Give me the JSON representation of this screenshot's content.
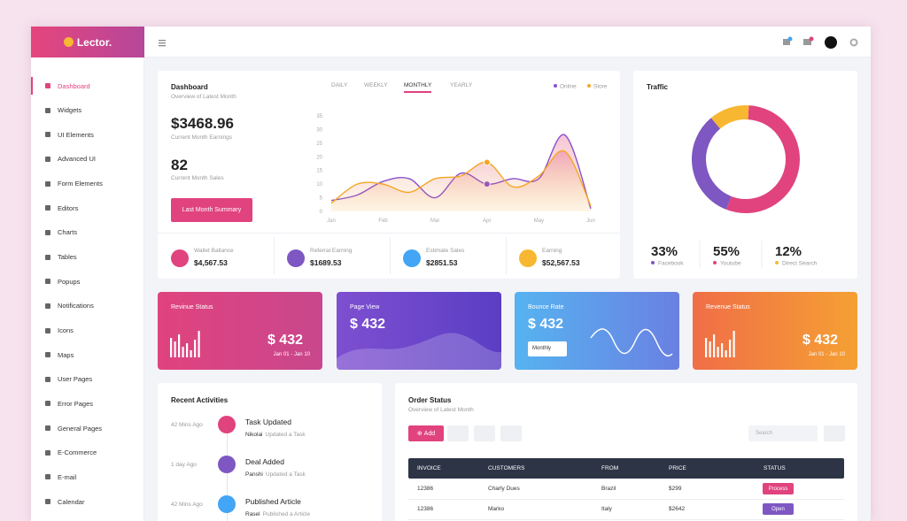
{
  "brand": "Lector.",
  "sidebar": [
    "Dashboard",
    "Widgets",
    "UI Elements",
    "Advanced UI",
    "Form Elements",
    "Editors",
    "Charts",
    "Tables",
    "Popups",
    "Notifications",
    "Icons",
    "Maps",
    "User Pages",
    "Error Pages",
    "General Pages",
    "E-Commerce",
    "E-mail",
    "Calendar"
  ],
  "dashboard": {
    "title": "Dashboard",
    "subtitle": "Overview of Latest Month",
    "tabs": [
      "DAILY",
      "WEEKLY",
      "MONTHLY",
      "YEARLY"
    ],
    "active_tab": 2,
    "earnings": "$3468.96",
    "earnings_label": "Current Month Earnings",
    "sales": "82",
    "sales_label": "Current Month Sales",
    "button": "Last Month Summary",
    "stats": [
      {
        "label": "Wallet Ballance",
        "value": "$4,567.53"
      },
      {
        "label": "Referral Earning",
        "value": "$1689.53"
      },
      {
        "label": "Estimate Sales",
        "value": "$2851.53"
      },
      {
        "label": "Earning",
        "value": "$52,567.53"
      }
    ]
  },
  "chart_data": [
    {
      "type": "area",
      "categories": [
        "Jan",
        null,
        "Feb",
        null,
        "Mar",
        null,
        "Apr",
        null,
        "May",
        null,
        "Jun"
      ],
      "series": [
        {
          "name": "Online",
          "color": "#8a4fd0",
          "values": [
            4,
            6,
            11,
            12,
            5,
            14,
            10,
            12,
            12,
            28,
            1
          ]
        },
        {
          "name": "Store",
          "color": "#f5a623",
          "values": [
            3,
            10,
            10,
            7,
            12,
            13,
            18,
            9,
            13,
            22,
            2
          ]
        }
      ],
      "ylim": [
        0,
        35
      ],
      "yticks": [
        0,
        5,
        10,
        15,
        20,
        25,
        30,
        35
      ],
      "legend": "top-right"
    },
    {
      "type": "pie",
      "title": "Traffic",
      "donut": true,
      "categories": [
        "Facebook",
        "Youtube",
        "Direct Search"
      ],
      "values": [
        33,
        55,
        12
      ],
      "value_labels": [
        "33%",
        "55%",
        "12%"
      ],
      "colors": [
        "#7e57c2",
        "#e0437e",
        "#f7b731"
      ]
    }
  ],
  "cards": [
    {
      "title": "Revinue Status",
      "value": "$ 432",
      "date": "Jan 01 - Jan 10"
    },
    {
      "title": "Page View",
      "value": "$ 432"
    },
    {
      "title": "Bounce Rate",
      "value": "$ 432",
      "select": "Monthly"
    },
    {
      "title": "Revenue Status",
      "value": "$ 432",
      "date": "Jan 01 - Jan 10"
    }
  ],
  "activities": {
    "title": "Recent Activities",
    "items": [
      {
        "time": "42 Mins Ago",
        "title": "Task Updated",
        "user": "Nikolai",
        "text": "Updated a Task"
      },
      {
        "time": "1 day Ago",
        "title": "Deal Added",
        "user": "Panshi",
        "text": "Updated a Task"
      },
      {
        "time": "42 Mins Ago",
        "title": "Published Article",
        "user": "Rasel",
        "text": "Published a Article"
      }
    ]
  },
  "orders": {
    "title": "Order Status",
    "subtitle": "Overview of Latest Month",
    "add": "Add",
    "search": "Search",
    "columns": [
      "INVOICE",
      "CUSTOMERS",
      "FROM",
      "PRICE",
      "STATUS"
    ],
    "rows": [
      [
        "12386",
        "Charly Dues",
        "Brazil",
        "$299",
        "Process"
      ],
      [
        "12386",
        "Marko",
        "Italy",
        "$2642",
        "Open"
      ]
    ]
  }
}
